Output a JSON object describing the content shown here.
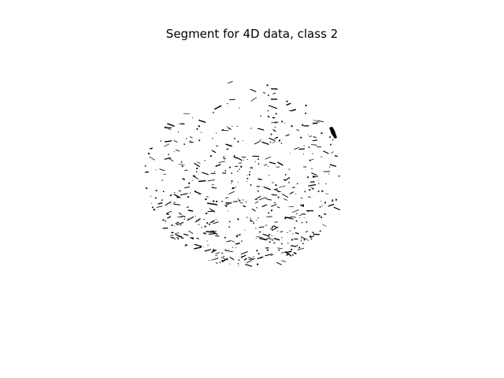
{
  "figure": {
    "title": "Segment for 4D data, class 2",
    "image_description_colors": {
      "background": "#ffffff",
      "segment": "#000000"
    }
  }
}
